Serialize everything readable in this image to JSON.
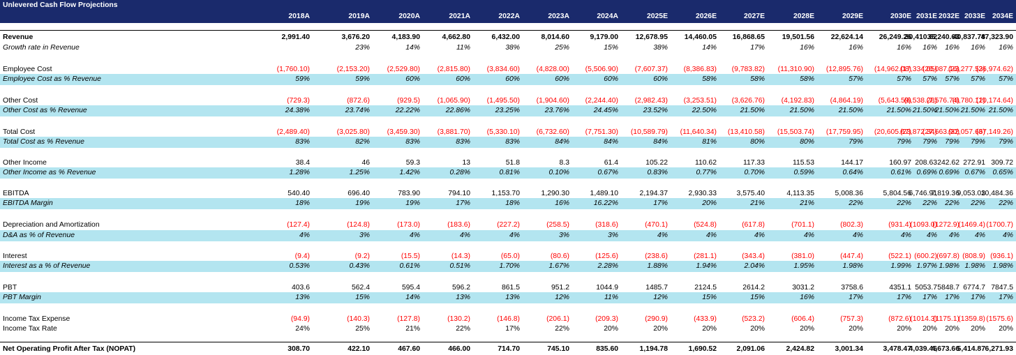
{
  "title": "Unlevered Cash Flow Projections",
  "years": [
    "2018A",
    "2019A",
    "2020A",
    "2021A",
    "2022A",
    "2023A",
    "2024A",
    "2025E",
    "2026E",
    "2027E",
    "2028E",
    "2029E",
    "2030E",
    "2031E",
    "2032E",
    "2033E",
    "2034E"
  ],
  "rows": [
    {
      "label": "Revenue",
      "style": "bold",
      "values": [
        "2,991.40",
        "3,676.20",
        "4,183.90",
        "4,662.80",
        "6,432.00",
        "8,014.60",
        "9,179.00",
        "12,678.95",
        "14,460.05",
        "16,868.65",
        "19,501.56",
        "22,624.14",
        "26,249.26",
        "30,410.62",
        "35,240.63",
        "40,837.78",
        "47,323.90"
      ]
    },
    {
      "label": "Growth rate  in Revenue",
      "style": "ital",
      "values": [
        "",
        "23%",
        "14%",
        "11%",
        "38%",
        "25%",
        "15%",
        "38%",
        "14%",
        "17%",
        "16%",
        "16%",
        "16%",
        "16%",
        "16%",
        "16%",
        "16%"
      ]
    },
    {
      "label": "Employee Cost",
      "style": "",
      "values": [
        "(1,760.10)",
        "(2,153.20)",
        "(2,529.80)",
        "(2,815.80)",
        "(3,834.60)",
        "(4,828.00)",
        "(5,506.90)",
        "(7,607.37)",
        "(8,386.83)",
        "(9,783.82)",
        "(11,310.90)",
        "(12,895.76)",
        "(14,962.08)",
        "(17,334.05)",
        "(20,087.16)",
        "(23,277.53)",
        "(26,974.62)"
      ]
    },
    {
      "label": "Employee Cost as % Revenue",
      "style": "ital shade",
      "values": [
        "59%",
        "59%",
        "60%",
        "60%",
        "60%",
        "60%",
        "60%",
        "60%",
        "58%",
        "58%",
        "58%",
        "57%",
        "57%",
        "57%",
        "57%",
        "57%",
        "57%"
      ]
    },
    {
      "label": "Other Cost",
      "style": "",
      "values": [
        "(729.3)",
        "(872.6)",
        "(929.5)",
        "(1,065.90)",
        "(1,495.50)",
        "(1,904.60)",
        "(2,244.40)",
        "(2,982.43)",
        "(3,253.51)",
        "(3,626.76)",
        "(4,192.83)",
        "(4,864.19)",
        "(5,643.59)",
        "(6,538.28)",
        "(7,576.74)",
        "(8,780.12)",
        "(10,174.64)"
      ]
    },
    {
      "label": "Other Cost as % Revenue",
      "style": "ital shade",
      "values": [
        "24.38%",
        "23.74%",
        "22.22%",
        "22.86%",
        "23.25%",
        "23.76%",
        "24.45%",
        "23.52%",
        "22.50%",
        "21.50%",
        "21.50%",
        "21.50%",
        "21.50%",
        "21.50%",
        "21.50%",
        "21.50%",
        "21.50%"
      ]
    },
    {
      "label": "Total Cost",
      "style": "",
      "values": [
        "(2,489.40)",
        "(3,025.80)",
        "(3,459.30)",
        "(3,881.70)",
        "(5,330.10)",
        "(6,732.60)",
        "(7,751.30)",
        "(10,589.79)",
        "(11,640.34)",
        "(13,410.58)",
        "(15,503.74)",
        "(17,759.95)",
        "(20,605.67)",
        "(23,872.34)",
        "(27,663.90)",
        "(32,057.66)",
        "(37,149.26)"
      ]
    },
    {
      "label": "Total Cost as % Revenue",
      "style": "ital shade",
      "values": [
        "83%",
        "82%",
        "83%",
        "83%",
        "83%",
        "84%",
        "84%",
        "84%",
        "81%",
        "80%",
        "80%",
        "79%",
        "79%",
        "79%",
        "79%",
        "79%",
        "79%"
      ]
    },
    {
      "label": "Other Income",
      "style": "",
      "values": [
        "38.4",
        "46",
        "59.3",
        "13",
        "51.8",
        "8.3",
        "61.4",
        "105.22",
        "110.62",
        "117.33",
        "115.53",
        "144.17",
        "160.97",
        "208.63",
        "242.62",
        "272.91",
        "309.72"
      ]
    },
    {
      "label": "Other Income as % Revenue",
      "style": "ital shade",
      "values": [
        "1.28%",
        "1.25%",
        "1.42%",
        "0.28%",
        "0.81%",
        "0.10%",
        "0.67%",
        "0.83%",
        "0.77%",
        "0.70%",
        "0.59%",
        "0.64%",
        "0.61%",
        "0.69%",
        "0.69%",
        "0.67%",
        "0.65%"
      ]
    },
    {
      "label": "EBITDA",
      "style": "",
      "values": [
        "540.40",
        "696.40",
        "783.90",
        "794.10",
        "1,153.70",
        "1,290.30",
        "1,489.10",
        "2,194.37",
        "2,930.33",
        "3,575.40",
        "4,113.35",
        "5,008.36",
        "5,804.56",
        "6,746.91",
        "7,819.36",
        "9,053.03",
        "10,484.36"
      ]
    },
    {
      "label": "EBITDA Margin",
      "style": "ital shade",
      "values": [
        "18%",
        "19%",
        "19%",
        "17%",
        "18%",
        "16%",
        "16.22%",
        "17%",
        "20%",
        "21%",
        "21%",
        "22%",
        "22%",
        "22%",
        "22%",
        "22%",
        "22%"
      ]
    },
    {
      "label": "Depreciation and Amortization",
      "style": "",
      "values": [
        "(127.4)",
        "(124.8)",
        "(173.0)",
        "(183.6)",
        "(227.2)",
        "(258.5)",
        "(318.6)",
        "(470.1)",
        "(524.8)",
        "(617.8)",
        "(701.1)",
        "(802.3)",
        "(931.4)",
        "(1093.0)",
        "(1272.9)",
        "(1469.4)",
        "(1700.7)"
      ]
    },
    {
      "label": "D&A as % of Revenue",
      "style": "ital shade",
      "values": [
        "4%",
        "3%",
        "4%",
        "4%",
        "4%",
        "3%",
        "3%",
        "4%",
        "4%",
        "4%",
        "4%",
        "4%",
        "4%",
        "4%",
        "4%",
        "4%",
        "4%"
      ]
    },
    {
      "label": "Interest",
      "style": "",
      "values": [
        "(9.4)",
        "(9.2)",
        "(15.5)",
        "(14.3)",
        "(65.0)",
        "(80.6)",
        "(125.6)",
        "(238.6)",
        "(281.1)",
        "(343.4)",
        "(381.0)",
        "(447.4)",
        "(522.1)",
        "(600.2)",
        "(697.8)",
        "(808.9)",
        "(936.1)"
      ]
    },
    {
      "label": "Interest as a % of Revenue",
      "style": "ital shade",
      "values": [
        "0.53%",
        "0.43%",
        "0.61%",
        "0.51%",
        "1.70%",
        "1.67%",
        "2.28%",
        "1.88%",
        "1.94%",
        "2.04%",
        "1.95%",
        "1.98%",
        "1.99%",
        "1.97%",
        "1.98%",
        "1.98%",
        "1.98%"
      ]
    },
    {
      "label": "PBT",
      "style": "",
      "values": [
        "403.6",
        "562.4",
        "595.4",
        "596.2",
        "861.5",
        "951.2",
        "1044.9",
        "1485.7",
        "2124.5",
        "2614.2",
        "3031.2",
        "3758.6",
        "4351.1",
        "5053.7",
        "5848.7",
        "6774.7",
        "7847.5"
      ]
    },
    {
      "label": "PBT Margin",
      "style": "ital shade",
      "values": [
        "13%",
        "15%",
        "14%",
        "13%",
        "13%",
        "12%",
        "11%",
        "12%",
        "15%",
        "15%",
        "16%",
        "17%",
        "17%",
        "17%",
        "17%",
        "17%",
        "17%"
      ]
    },
    {
      "label": "Income Tax Expense",
      "style": "",
      "values": [
        "(94.9)",
        "(140.3)",
        "(127.8)",
        "(130.2)",
        "(146.8)",
        "(206.1)",
        "(209.3)",
        "(290.9)",
        "(433.9)",
        "(523.2)",
        "(606.4)",
        "(757.3)",
        "(872.6)",
        "(1014.3)",
        "(1175.1)",
        "(1359.8)",
        "(1575.6)"
      ]
    },
    {
      "label": "Income Tax Rate",
      "style": "",
      "values": [
        "24%",
        "25%",
        "21%",
        "22%",
        "17%",
        "22%",
        "20%",
        "20%",
        "20%",
        "20%",
        "20%",
        "20%",
        "20%",
        "20%",
        "20%",
        "20%",
        "20%"
      ]
    },
    {
      "label": "Net Operating Profit After Tax (NOPAT)",
      "style": "bold",
      "values": [
        "308.70",
        "422.10",
        "467.60",
        "466.00",
        "714.70",
        "745.10",
        "835.60",
        "1,194.78",
        "1,690.52",
        "2,091.06",
        "2,424.82",
        "3,001.34",
        "3,478.47",
        "4,039.46",
        "4,673.66",
        "5,414.87",
        "6,271.93"
      ]
    }
  ]
}
